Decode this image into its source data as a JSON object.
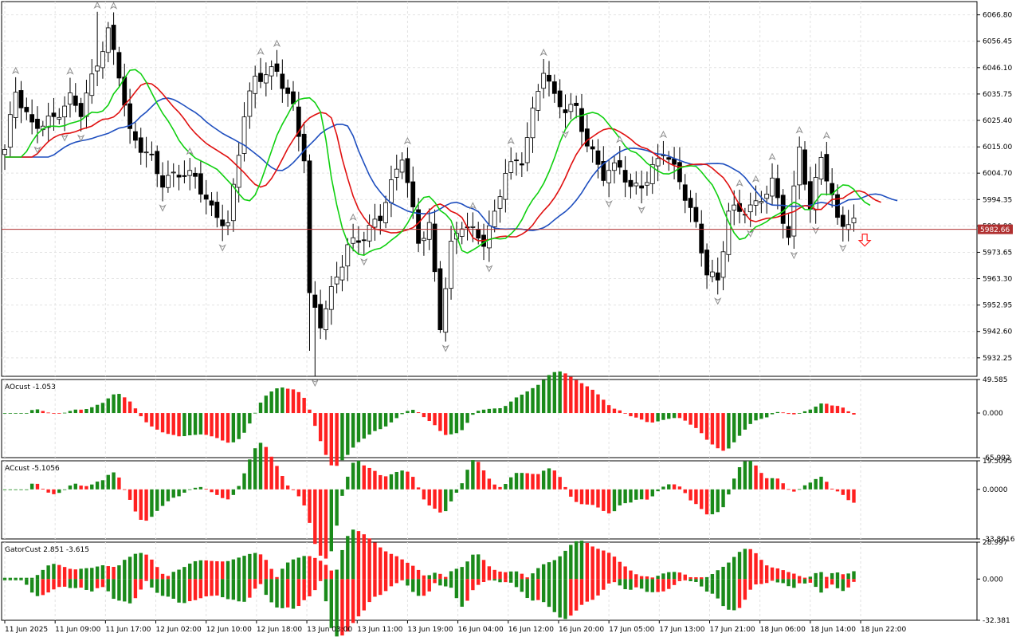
{
  "chart_data": {
    "type": "candlestick",
    "symbol_price_current": 5982.66,
    "current_price_label": "5982.66",
    "colors": {
      "bull_body": "#ffffff",
      "bear_body": "#000000",
      "candle_outline": "#000000",
      "jaw": "#1f4fbf",
      "teeth": "#e01010",
      "lips": "#10d010",
      "ao_up": "#1a8a1a",
      "ao_down": "#ff2020",
      "price_line": "#b03030",
      "sell_arrow": "#ff2020",
      "fractal": "#909090"
    },
    "main": {
      "y_ticks": [
        "6066.80",
        "6056.45",
        "6046.10",
        "6035.75",
        "6025.40",
        "6015.00",
        "6004.70",
        "5994.35",
        "5984.00",
        "5973.65",
        "5963.30",
        "5952.95",
        "5942.60",
        "5932.25"
      ],
      "ylim": [
        5925.0,
        6072.0
      ],
      "candles": [],
      "jaw": [],
      "teeth": [],
      "lips": [],
      "fractals_up": [],
      "fractals_down": [],
      "sell_arrow_index": 0
    },
    "ao": {
      "label": "AOcust -1.053",
      "y_ticks": [
        "49.585",
        "0.000",
        "-65.992"
      ],
      "ylim": [
        -65.992,
        49.585
      ],
      "values": []
    },
    "ac": {
      "label": "ACcust -5.1056",
      "y_ticks": [
        "19.5095",
        "0.0000",
        "-33.8616"
      ],
      "ylim": [
        -33.8616,
        19.5095
      ],
      "values": []
    },
    "gator": {
      "label": "GatorCust 2.851 -3.615",
      "y_ticks": [
        "28.997",
        "0.000",
        "-32.381"
      ],
      "ylim": [
        -32.381,
        28.997
      ],
      "upper": [],
      "lower": []
    },
    "x_labels": [
      "11 Jun 2025",
      "11 Jun 09:00",
      "11 Jun 17:00",
      "12 Jun 02:00",
      "12 Jun 10:00",
      "12 Jun 18:00",
      "13 Jun 03:00",
      "13 Jun 11:00",
      "13 Jun 19:00",
      "16 Jun 04:00",
      "16 Jun 12:00",
      "16 Jun 20:00",
      "17 Jun 05:00",
      "17 Jun 13:00",
      "17 Jun 21:00",
      "18 Jun 06:00",
      "18 Jun 14:00",
      "18 Jun 22:00"
    ]
  }
}
